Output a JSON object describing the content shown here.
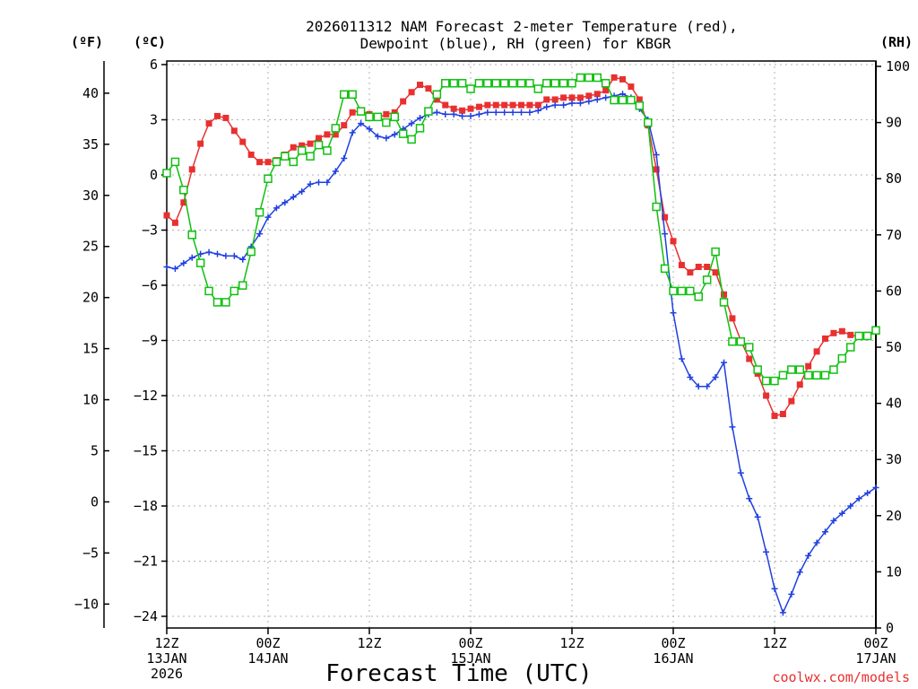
{
  "chart_data": {
    "type": "line",
    "title_line1": "2026011312 NAM Forecast 2-meter Temperature (red),",
    "title_line2": "Dewpoint (blue), RH (green) for KBGR",
    "xlabel": "Forecast Time (UTC)",
    "credit": "coolwx.com/models",
    "unit_f": "(ºF)",
    "unit_c": "(ºC)",
    "unit_rh": "(RH)",
    "x_range_hours": [
      0,
      84
    ],
    "x_ticks": [
      {
        "hour": 0,
        "lines": [
          "12Z",
          "13JAN",
          "2026"
        ]
      },
      {
        "hour": 12,
        "lines": [
          "00Z",
          "14JAN"
        ]
      },
      {
        "hour": 24,
        "lines": [
          "12Z"
        ]
      },
      {
        "hour": 36,
        "lines": [
          "00Z",
          "15JAN"
        ]
      },
      {
        "hour": 48,
        "lines": [
          "12Z"
        ]
      },
      {
        "hour": 60,
        "lines": [
          "00Z",
          "16JAN"
        ]
      },
      {
        "hour": 72,
        "lines": [
          "12Z"
        ]
      },
      {
        "hour": 84,
        "lines": [
          "00Z",
          "17JAN"
        ]
      }
    ],
    "y_celsius": {
      "range": [
        -25,
        6
      ],
      "ticks": [
        "6",
        "3",
        "0",
        "−3",
        "−6",
        "−9",
        "−12",
        "−15",
        "−18",
        "−21",
        "−24"
      ],
      "tick_values": [
        6,
        3,
        0,
        -3,
        -6,
        -9,
        -12,
        -15,
        -18,
        -21,
        -24
      ]
    },
    "y_fahrenheit": {
      "ticks": [
        "40",
        "35",
        "30",
        "25",
        "20",
        "15",
        "10",
        "5",
        "0",
        "−5",
        "−10"
      ],
      "tick_values": [
        40,
        35,
        30,
        25,
        20,
        15,
        10,
        5,
        0,
        -5,
        -10
      ]
    },
    "y_rh": {
      "range": [
        0,
        100
      ],
      "ticks": [
        "100",
        "90",
        "80",
        "70",
        "60",
        "50",
        "40",
        "30",
        "20",
        "10",
        "0"
      ],
      "tick_values": [
        100,
        90,
        80,
        70,
        60,
        50,
        40,
        30,
        20,
        10,
        0
      ]
    },
    "series": [
      {
        "name": "Temperature",
        "axis": "celsius",
        "color": "#e83030",
        "marker": "filled-square",
        "points": [
          [
            0,
            -2.2
          ],
          [
            1,
            -2.6
          ],
          [
            2,
            -1.5
          ],
          [
            3,
            0.3
          ],
          [
            4,
            1.7
          ],
          [
            5,
            2.8
          ],
          [
            6,
            3.2
          ],
          [
            7,
            3.1
          ],
          [
            8,
            2.4
          ],
          [
            9,
            1.8
          ],
          [
            10,
            1.1
          ],
          [
            11,
            0.7
          ],
          [
            12,
            0.7
          ],
          [
            13,
            0.8
          ],
          [
            14,
            1.1
          ],
          [
            15,
            1.5
          ],
          [
            16,
            1.6
          ],
          [
            17,
            1.7
          ],
          [
            18,
            2.0
          ],
          [
            19,
            2.2
          ],
          [
            20,
            2.2
          ],
          [
            21,
            2.7
          ],
          [
            22,
            3.4
          ],
          [
            23,
            3.5
          ],
          [
            24,
            3.3
          ],
          [
            25,
            3.1
          ],
          [
            26,
            3.3
          ],
          [
            27,
            3.4
          ],
          [
            28,
            4.0
          ],
          [
            29,
            4.5
          ],
          [
            30,
            4.9
          ],
          [
            31,
            4.7
          ],
          [
            32,
            4.1
          ],
          [
            33,
            3.8
          ],
          [
            34,
            3.6
          ],
          [
            35,
            3.5
          ],
          [
            36,
            3.6
          ],
          [
            37,
            3.7
          ],
          [
            38,
            3.8
          ],
          [
            39,
            3.8
          ],
          [
            40,
            3.8
          ],
          [
            41,
            3.8
          ],
          [
            42,
            3.8
          ],
          [
            43,
            3.8
          ],
          [
            44,
            3.8
          ],
          [
            45,
            4.1
          ],
          [
            46,
            4.1
          ],
          [
            47,
            4.2
          ],
          [
            48,
            4.2
          ],
          [
            49,
            4.2
          ],
          [
            50,
            4.3
          ],
          [
            51,
            4.4
          ],
          [
            52,
            4.6
          ],
          [
            53,
            5.3
          ],
          [
            54,
            5.2
          ],
          [
            55,
            4.8
          ],
          [
            56,
            4.1
          ],
          [
            57,
            2.7
          ],
          [
            58,
            0.3
          ],
          [
            59,
            -2.3
          ],
          [
            60,
            -3.6
          ],
          [
            61,
            -4.9
          ],
          [
            62,
            -5.3
          ],
          [
            63,
            -5.0
          ],
          [
            64,
            -5.0
          ],
          [
            65,
            -5.3
          ],
          [
            66,
            -6.5
          ],
          [
            67,
            -7.8
          ],
          [
            68,
            -9.0
          ],
          [
            69,
            -10.0
          ],
          [
            70,
            -10.8
          ],
          [
            71,
            -12.0
          ],
          [
            72,
            -13.1
          ],
          [
            73,
            -13.0
          ],
          [
            74,
            -12.3
          ],
          [
            75,
            -11.4
          ],
          [
            76,
            -10.4
          ],
          [
            77,
            -9.6
          ],
          [
            78,
            -8.9
          ],
          [
            79,
            -8.6
          ],
          [
            80,
            -8.5
          ],
          [
            81,
            -8.7
          ],
          [
            82,
            -8.8
          ],
          [
            83,
            -8.7
          ],
          [
            84,
            -8.5
          ]
        ]
      },
      {
        "name": "Dewpoint",
        "axis": "celsius",
        "color": "#2040e0",
        "marker": "plus",
        "points": [
          [
            0,
            -5.0
          ],
          [
            1,
            -5.1
          ],
          [
            2,
            -4.8
          ],
          [
            3,
            -4.5
          ],
          [
            4,
            -4.3
          ],
          [
            5,
            -4.2
          ],
          [
            6,
            -4.3
          ],
          [
            7,
            -4.4
          ],
          [
            8,
            -4.4
          ],
          [
            9,
            -4.6
          ],
          [
            10,
            -3.9
          ],
          [
            11,
            -3.2
          ],
          [
            12,
            -2.3
          ],
          [
            13,
            -1.8
          ],
          [
            14,
            -1.5
          ],
          [
            15,
            -1.2
          ],
          [
            16,
            -0.9
          ],
          [
            17,
            -0.5
          ],
          [
            18,
            -0.4
          ],
          [
            19,
            -0.4
          ],
          [
            20,
            0.2
          ],
          [
            21,
            0.9
          ],
          [
            22,
            2.3
          ],
          [
            23,
            2.8
          ],
          [
            24,
            2.5
          ],
          [
            25,
            2.1
          ],
          [
            26,
            2.0
          ],
          [
            27,
            2.2
          ],
          [
            28,
            2.5
          ],
          [
            29,
            2.8
          ],
          [
            30,
            3.1
          ],
          [
            31,
            3.3
          ],
          [
            32,
            3.4
          ],
          [
            33,
            3.3
          ],
          [
            34,
            3.3
          ],
          [
            35,
            3.2
          ],
          [
            36,
            3.2
          ],
          [
            37,
            3.3
          ],
          [
            38,
            3.4
          ],
          [
            39,
            3.4
          ],
          [
            40,
            3.4
          ],
          [
            41,
            3.4
          ],
          [
            42,
            3.4
          ],
          [
            43,
            3.4
          ],
          [
            44,
            3.5
          ],
          [
            45,
            3.7
          ],
          [
            46,
            3.8
          ],
          [
            47,
            3.8
          ],
          [
            48,
            3.9
          ],
          [
            49,
            3.9
          ],
          [
            50,
            4.0
          ],
          [
            51,
            4.1
          ],
          [
            52,
            4.2
          ],
          [
            53,
            4.3
          ],
          [
            54,
            4.4
          ],
          [
            55,
            4.2
          ],
          [
            56,
            3.6
          ],
          [
            57,
            3.0
          ],
          [
            58,
            1.1
          ],
          [
            59,
            -3.2
          ],
          [
            60,
            -7.5
          ],
          [
            61,
            -10.0
          ],
          [
            62,
            -11.0
          ],
          [
            63,
            -11.5
          ],
          [
            64,
            -11.5
          ],
          [
            65,
            -11.0
          ],
          [
            66,
            -10.2
          ],
          [
            67,
            -13.7
          ],
          [
            68,
            -16.2
          ],
          [
            69,
            -17.6
          ],
          [
            70,
            -18.6
          ],
          [
            71,
            -20.5
          ],
          [
            72,
            -22.5
          ],
          [
            73,
            -23.8
          ],
          [
            74,
            -22.8
          ],
          [
            75,
            -21.6
          ],
          [
            76,
            -20.7
          ],
          [
            77,
            -20.0
          ],
          [
            78,
            -19.4
          ],
          [
            79,
            -18.8
          ],
          [
            80,
            -18.4
          ],
          [
            81,
            -18.0
          ],
          [
            82,
            -17.6
          ],
          [
            83,
            -17.3
          ],
          [
            84,
            -17.0
          ]
        ]
      },
      {
        "name": "RH",
        "axis": "rh",
        "color": "#10c010",
        "marker": "open-square",
        "points": [
          [
            0,
            81
          ],
          [
            1,
            83
          ],
          [
            2,
            78
          ],
          [
            3,
            70
          ],
          [
            4,
            65
          ],
          [
            5,
            60
          ],
          [
            6,
            58
          ],
          [
            7,
            58
          ],
          [
            8,
            60
          ],
          [
            9,
            61
          ],
          [
            10,
            67
          ],
          [
            11,
            74
          ],
          [
            12,
            80
          ],
          [
            13,
            83
          ],
          [
            14,
            84
          ],
          [
            15,
            83
          ],
          [
            16,
            85
          ],
          [
            17,
            84
          ],
          [
            18,
            86
          ],
          [
            19,
            85
          ],
          [
            20,
            89
          ],
          [
            21,
            95
          ],
          [
            22,
            95
          ],
          [
            23,
            92
          ],
          [
            24,
            91
          ],
          [
            25,
            91
          ],
          [
            26,
            90
          ],
          [
            27,
            91
          ],
          [
            28,
            88
          ],
          [
            29,
            87
          ],
          [
            30,
            89
          ],
          [
            31,
            92
          ],
          [
            32,
            95
          ],
          [
            33,
            97
          ],
          [
            34,
            97
          ],
          [
            35,
            97
          ],
          [
            36,
            96
          ],
          [
            37,
            97
          ],
          [
            38,
            97
          ],
          [
            39,
            97
          ],
          [
            40,
            97
          ],
          [
            41,
            97
          ],
          [
            42,
            97
          ],
          [
            43,
            97
          ],
          [
            44,
            96
          ],
          [
            45,
            97
          ],
          [
            46,
            97
          ],
          [
            47,
            97
          ],
          [
            48,
            97
          ],
          [
            49,
            98
          ],
          [
            50,
            98
          ],
          [
            51,
            98
          ],
          [
            52,
            97
          ],
          [
            53,
            94
          ],
          [
            54,
            94
          ],
          [
            55,
            94
          ],
          [
            56,
            93
          ],
          [
            57,
            90
          ],
          [
            58,
            75
          ],
          [
            59,
            64
          ],
          [
            60,
            60
          ],
          [
            61,
            60
          ],
          [
            62,
            60
          ],
          [
            63,
            59
          ],
          [
            64,
            62
          ],
          [
            65,
            67
          ],
          [
            66,
            58
          ],
          [
            67,
            51
          ],
          [
            68,
            51
          ],
          [
            69,
            50
          ],
          [
            70,
            46
          ],
          [
            71,
            44
          ],
          [
            72,
            44
          ],
          [
            73,
            45
          ],
          [
            74,
            46
          ],
          [
            75,
            46
          ],
          [
            76,
            45
          ],
          [
            77,
            45
          ],
          [
            78,
            45
          ],
          [
            79,
            46
          ],
          [
            80,
            48
          ],
          [
            81,
            50
          ],
          [
            82,
            52
          ],
          [
            83,
            52
          ],
          [
            84,
            53
          ]
        ]
      }
    ]
  }
}
